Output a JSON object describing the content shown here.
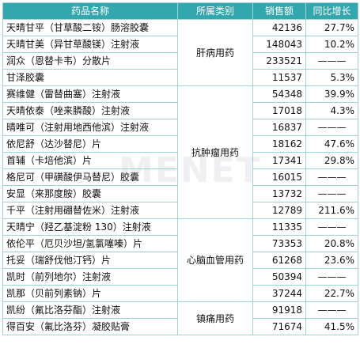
{
  "headers": [
    "药品名称",
    "所属类别",
    "销售额",
    "同比增长"
  ],
  "categories": [
    {
      "name": "肝病用药",
      "rows": [
        {
          "name": "天晴甘平（甘草酸二铵）肠溶胶囊",
          "sales": "42136",
          "growth": "27.7%"
        },
        {
          "name": "天晴甘美（异甘草酸镁）注射液",
          "sales": "148043",
          "growth": "10.2%"
        },
        {
          "name": "润众（恩替卡韦）分散片",
          "sales": "233521",
          "growth": "———"
        },
        {
          "name": "甘泽胶囊",
          "sales": "11537",
          "growth": "5.3%"
        }
      ]
    },
    {
      "name": "抗肿瘤用药",
      "rows": [
        {
          "name": "赛维健（雷替曲塞）注射液",
          "sales": "54348",
          "growth": "39.9%"
        },
        {
          "name": "天晴依泰（唑来膦酸）注射液",
          "sales": "17018",
          "growth": "4.3%"
        },
        {
          "name": "晴唯可（注射用地西他滨）注射液",
          "sales": "16837",
          "growth": "———"
        },
        {
          "name": "依尼舒（达沙替尼）片",
          "sales": "18162",
          "growth": "47.6%"
        },
        {
          "name": "首辅（卡培他滨）片",
          "sales": "17341",
          "growth": "29.8%"
        },
        {
          "name": "格尼可（甲磺酸伊马替尼）胶囊",
          "sales": "16015",
          "growth": "———"
        },
        {
          "name": "安显（来那度胺）胶囊",
          "sales": "13732",
          "growth": "———"
        },
        {
          "name": "千平（注射用硼替佐米）注射液",
          "sales": "12789",
          "growth": "211.6%"
        }
      ]
    },
    {
      "name": "心脑血管用药",
      "rows": [
        {
          "name": "天晴宁（羟乙基淀粉 130）注射液",
          "sales": "11335",
          "growth": "———"
        },
        {
          "name": "依伦平（厄贝沙坦/氢氯噻嗪）片",
          "sales": "73353",
          "growth": "20.8%"
        },
        {
          "name": "托妥（瑞舒伐他汀钙）片",
          "sales": "61268",
          "growth": "23.6%"
        },
        {
          "name": "凯时（前列地尔）注射液",
          "sales": "50394",
          "growth": "———"
        },
        {
          "name": "凯那（贝前列素钠）片",
          "sales": "37244",
          "growth": "22.7%"
        }
      ]
    },
    {
      "name": "镇痛用药",
      "rows": [
        {
          "name": "凯纷（氟比洛芬酯）注射液",
          "sales": "91918",
          "growth": "———"
        },
        {
          "name": "得百安（氟比洛芬）凝胶贴膏",
          "sales": "71674",
          "growth": "41.5%"
        }
      ]
    }
  ],
  "watermark": "MENET"
}
